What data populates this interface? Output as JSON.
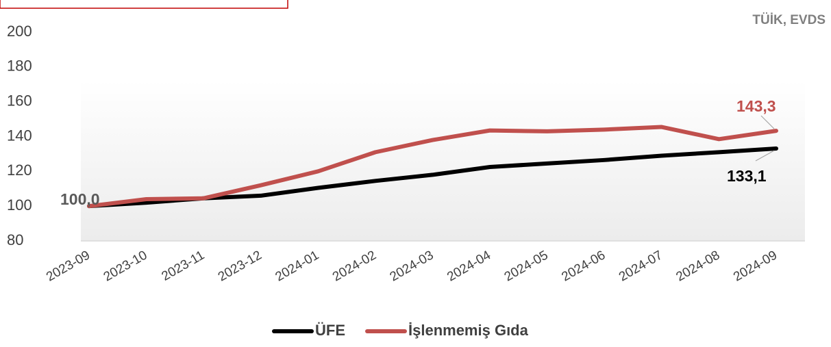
{
  "chart_data": {
    "type": "line",
    "source": "TÜİK, EVDS",
    "categories": [
      "2023-09",
      "2023-10",
      "2023-11",
      "2023-12",
      "2024-01",
      "2024-02",
      "2024-03",
      "2024-04",
      "2024-05",
      "2024-06",
      "2024-07",
      "2024-08",
      "2024-09"
    ],
    "series": [
      {
        "name": "ÜFE",
        "color": "#000000",
        "values": [
          100,
          102,
          104.5,
          106,
          110.5,
          114.5,
          118,
          122.5,
          124.5,
          126.5,
          129,
          131,
          133.1
        ],
        "value_labels": [
          "100,0",
          null,
          null,
          null,
          null,
          null,
          null,
          null,
          null,
          null,
          null,
          null,
          "133,1"
        ]
      },
      {
        "name": "İşlenmemiş Gıda",
        "color": "#c0504d",
        "values": [
          100,
          104,
          104.5,
          112,
          120,
          131,
          138,
          143.5,
          143,
          144,
          145.5,
          138.5,
          143.3
        ],
        "value_labels": [
          null,
          null,
          null,
          null,
          null,
          null,
          null,
          null,
          null,
          null,
          null,
          null,
          "143,3"
        ]
      }
    ],
    "ylim": [
      80,
      200
    ],
    "yticks": [
      80,
      100,
      120,
      140,
      160,
      180,
      200
    ]
  }
}
